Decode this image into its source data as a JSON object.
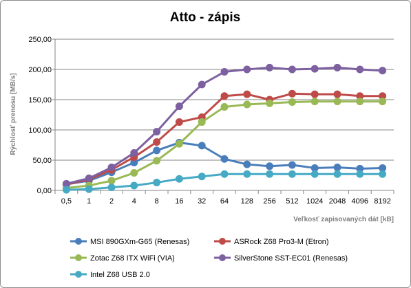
{
  "chart_data": {
    "type": "line",
    "title": "Atto - zápis",
    "xlabel": "Veľkosť zapisovaných  dát [kB]",
    "ylabel": "Rýchlosť prenosu [MB/s]",
    "categories": [
      "0,5",
      "1",
      "2",
      "4",
      "8",
      "16",
      "32",
      "64",
      "128",
      "256",
      "512",
      "1024",
      "2048",
      "4096",
      "8192"
    ],
    "ylim": [
      0,
      250
    ],
    "yticks": [
      "0,00",
      "50,00",
      "100,00",
      "150,00",
      "200,00",
      "250,00"
    ],
    "ytick_values": [
      0,
      50,
      100,
      150,
      200,
      250
    ],
    "grid": true,
    "legend_position": "bottom",
    "series": [
      {
        "name": "MSI 890GXm-G65 (Renesas)",
        "color": "#4a7ebb",
        "values": [
          10,
          16,
          30,
          46,
          66,
          79,
          74,
          52,
          43,
          40,
          42,
          37,
          38,
          36,
          37
        ]
      },
      {
        "name": "ASRock Z68 Pro3-M (Etron)",
        "color": "#be4b48",
        "values": [
          10,
          18,
          34,
          55,
          80,
          113,
          121,
          156,
          159,
          150,
          160,
          159,
          159,
          156,
          156
        ]
      },
      {
        "name": "Zotac Z68 ITX WiFi (VIA)",
        "color": "#98b954",
        "values": [
          4,
          8,
          16,
          29,
          49,
          77,
          113,
          138,
          142,
          144,
          146,
          147,
          147,
          147,
          147
        ]
      },
      {
        "name": "SilverStone SST-EC01 (Renesas)",
        "color": "#7d60a0",
        "values": [
          11,
          20,
          38,
          62,
          97,
          139,
          175,
          196,
          200,
          203,
          200,
          201,
          203,
          200,
          198
        ]
      },
      {
        "name": "Intel Z68 USB 2.0",
        "color": "#46aac5",
        "values": [
          1,
          2,
          5,
          8,
          13,
          19,
          23,
          27,
          27,
          27,
          27,
          27,
          27,
          27,
          27
        ]
      }
    ]
  }
}
